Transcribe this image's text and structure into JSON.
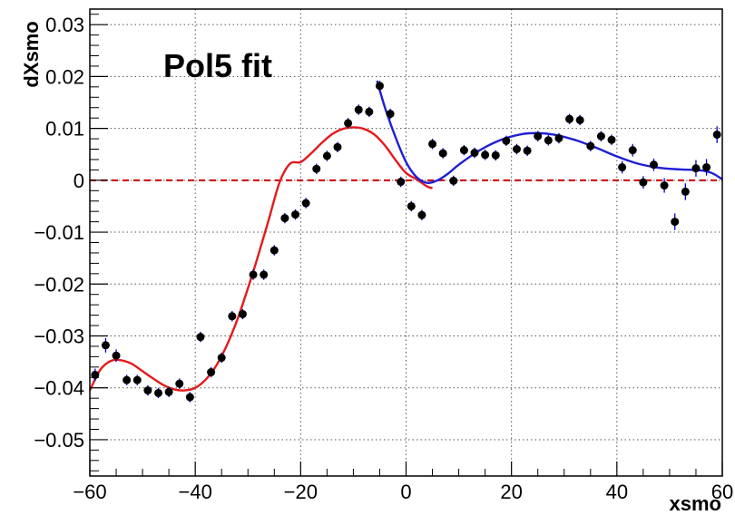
{
  "chart_data": {
    "type": "scatter",
    "title": "",
    "xlabel": "xsmo",
    "ylabel": "dXsmo",
    "annotation": "Pol5 fit",
    "xlim": [
      -60,
      60
    ],
    "ylim": [
      -0.057,
      0.033
    ],
    "grid": true,
    "x_ticks": [
      -60,
      -40,
      -20,
      0,
      20,
      40,
      60
    ],
    "x_tick_labels": [
      "−60",
      "−40",
      "−20",
      "0",
      "20",
      "40",
      "60"
    ],
    "y_ticks": [
      -0.05,
      -0.04,
      -0.03,
      -0.02,
      -0.01,
      0,
      0.01,
      0.02,
      0.03
    ],
    "y_tick_labels": [
      "−0.05",
      "−0.04",
      "−0.03",
      "−0.02",
      "−0.01",
      "0",
      "0.01",
      "0.02",
      "0.03"
    ],
    "colors": {
      "points": "#000000",
      "error_bars": "#0000cc",
      "fit_left": "#e31a1c",
      "fit_right": "#1f1fd6",
      "zero_line": "#cc0000"
    },
    "points": {
      "x": [
        -59,
        -57,
        -55,
        -53,
        -51,
        -49,
        -47,
        -45,
        -43,
        -41,
        -39,
        -37,
        -35,
        -33,
        -31,
        -29,
        -27,
        -25,
        -23,
        -21,
        -19,
        -17,
        -15,
        -13,
        -11,
        -9,
        -7,
        -5,
        -3,
        -1,
        1,
        3,
        5,
        7,
        9,
        11,
        13,
        15,
        17,
        19,
        21,
        23,
        25,
        27,
        29,
        31,
        33,
        35,
        37,
        39,
        41,
        43,
        45,
        47,
        49,
        51,
        53,
        55,
        57,
        59
      ],
      "y": [
        -0.0375,
        -0.0318,
        -0.0338,
        -0.0385,
        -0.0385,
        -0.0405,
        -0.041,
        -0.0408,
        -0.0392,
        -0.0418,
        -0.0302,
        -0.037,
        -0.0342,
        -0.0262,
        -0.0258,
        -0.0182,
        -0.0182,
        -0.0135,
        -0.0073,
        -0.0066,
        -0.0044,
        0.0022,
        0.0047,
        0.0064,
        0.011,
        0.0136,
        0.0132,
        0.0182,
        0.0128,
        -0.0003,
        -0.005,
        -0.0067,
        0.007,
        0.0052,
        -0.0001,
        0.0058,
        0.0053,
        0.0049,
        0.0048,
        0.0076,
        0.006,
        0.0057,
        0.0085,
        0.0077,
        0.0081,
        0.0118,
        0.0116,
        0.0066,
        0.0085,
        0.0078,
        0.0025,
        0.0058,
        -0.0004,
        0.003,
        -0.001,
        -0.008,
        -0.0022,
        0.0023,
        0.0025,
        0.0088
      ],
      "yerr": [
        0.0012,
        0.0014,
        0.0012,
        0.001,
        0.001,
        0.001,
        0.001,
        0.001,
        0.001,
        0.001,
        0.001,
        0.001,
        0.001,
        0.001,
        0.001,
        0.001,
        0.001,
        0.001,
        0.001,
        0.001,
        0.001,
        0.001,
        0.001,
        0.001,
        0.001,
        0.001,
        0.001,
        0.001,
        0.001,
        0.001,
        0.001,
        0.001,
        0.001,
        0.001,
        0.001,
        0.001,
        0.001,
        0.001,
        0.001,
        0.001,
        0.001,
        0.001,
        0.001,
        0.001,
        0.001,
        0.001,
        0.001,
        0.001,
        0.001,
        0.001,
        0.0012,
        0.0012,
        0.0012,
        0.0012,
        0.0014,
        0.0016,
        0.0016,
        0.0016,
        0.0016,
        0.0016
      ]
    },
    "fits": [
      {
        "x": [
          -60,
          -58,
          -56,
          -54,
          -52,
          -50,
          -48,
          -46,
          -44,
          -42,
          -40,
          -38,
          -36,
          -34,
          -32,
          -30,
          -28,
          -26,
          -24,
          -22,
          -20,
          -18,
          -16,
          -14,
          -12,
          -10,
          -8,
          -6,
          -4,
          -2,
          0,
          2,
          4,
          5
        ],
        "y": [
          -0.0405,
          -0.0365,
          -0.0348,
          -0.0347,
          -0.0354,
          -0.0368,
          -0.0382,
          -0.0395,
          -0.0403,
          -0.0405,
          -0.04,
          -0.0384,
          -0.0357,
          -0.0318,
          -0.0268,
          -0.0208,
          -0.0143,
          -0.0074,
          -0.0004,
          0.0032,
          0.0035,
          0.0052,
          0.0072,
          0.0089,
          0.0099,
          0.0102,
          0.0099,
          0.0088,
          0.0067,
          0.0039,
          0.0014,
          0.0002,
          -0.0012,
          -0.0015
        ]
      },
      {
        "x": [
          -5.5,
          -4,
          -2,
          0,
          2,
          4,
          6,
          8,
          10,
          14,
          18,
          22,
          25,
          28,
          32,
          36,
          40,
          44,
          48,
          52,
          56,
          58,
          60
        ],
        "y": [
          0.0192,
          0.014,
          0.0083,
          0.0035,
          0.0006,
          -0.0005,
          0.0,
          0.0013,
          0.003,
          0.0058,
          0.0078,
          0.0089,
          0.0091,
          0.0088,
          0.0078,
          0.0063,
          0.0046,
          0.0032,
          0.0024,
          0.0021,
          0.0019,
          0.0014,
          0.0002
        ]
      }
    ]
  }
}
